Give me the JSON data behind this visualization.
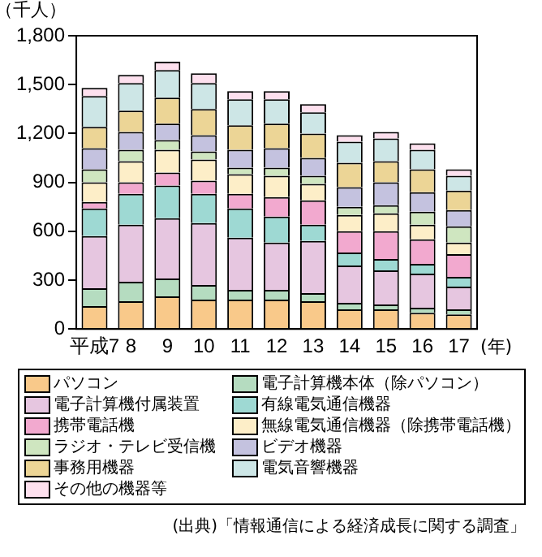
{
  "chart_data": {
    "type": "bar",
    "stacked": true,
    "ylabel": "（千人）",
    "xlabel": "(年)",
    "categories": [
      "平成7",
      "8",
      "9",
      "10",
      "11",
      "12",
      "13",
      "14",
      "15",
      "16",
      "17"
    ],
    "ylim": [
      0,
      1800
    ],
    "yticks": [
      0,
      300,
      600,
      900,
      {
        "value": 1200,
        "label": "1,200"
      },
      {
        "value": 1500,
        "label": "1,500"
      },
      {
        "value": 1800,
        "label": "1,800"
      }
    ],
    "grid": false,
    "legend": "bottom",
    "series": [
      {
        "name": "パソコン",
        "color": "#f9c98a",
        "values": [
          140,
          170,
          200,
          180,
          180,
          180,
          170,
          120,
          120,
          100,
          90
        ]
      },
      {
        "name": "電子計算機本体（除パソコン）",
        "color": "#b5dcc0",
        "values": [
          110,
          120,
          110,
          90,
          60,
          60,
          50,
          40,
          30,
          30,
          30
        ]
      },
      {
        "name": "電子計算機付属装置",
        "color": "#e6c6e0",
        "values": [
          320,
          350,
          370,
          380,
          320,
          290,
          320,
          230,
          210,
          210,
          140
        ]
      },
      {
        "name": "有線電気通信機器",
        "color": "#9ed9d3",
        "values": [
          170,
          190,
          200,
          180,
          180,
          160,
          100,
          80,
          70,
          60,
          60
        ]
      },
      {
        "name": "携帯電話機",
        "color": "#f2a9cf",
        "values": [
          40,
          70,
          80,
          80,
          90,
          120,
          150,
          130,
          170,
          150,
          140
        ]
      },
      {
        "name": "無線電気通信機器（除携帯電話機）",
        "color": "#fdeec8",
        "values": [
          120,
          130,
          140,
          130,
          120,
          130,
          100,
          100,
          110,
          90,
          70
        ]
      },
      {
        "name": "ラジオ・テレビ受信機",
        "color": "#cfe6c0",
        "values": [
          80,
          70,
          60,
          50,
          40,
          50,
          50,
          50,
          50,
          80,
          100
        ]
      },
      {
        "name": "ビデオ機器",
        "color": "#c4c2df",
        "values": [
          130,
          110,
          100,
          100,
          110,
          120,
          110,
          120,
          140,
          120,
          100
        ]
      },
      {
        "name": "事務用機器",
        "color": "#ecd596",
        "values": [
          130,
          130,
          160,
          160,
          150,
          150,
          150,
          150,
          130,
          140,
          120
        ]
      },
      {
        "name": "電気音響機器",
        "color": "#cde6e6",
        "values": [
          190,
          170,
          170,
          160,
          160,
          150,
          130,
          130,
          140,
          120,
          90
        ]
      },
      {
        "name": "その他の機器等",
        "color": "#fde0ee",
        "values": [
          50,
          50,
          50,
          60,
          50,
          50,
          50,
          40,
          40,
          40,
          40
        ]
      }
    ],
    "annotations": [
      "(出典)「情報通信による経済成長に関する調査」"
    ]
  }
}
